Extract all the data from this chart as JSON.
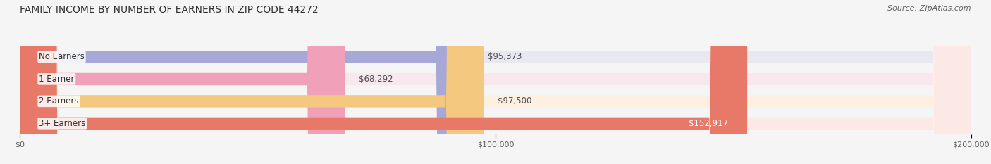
{
  "title": "FAMILY INCOME BY NUMBER OF EARNERS IN ZIP CODE 44272",
  "source": "Source: ZipAtlas.com",
  "categories": [
    "No Earners",
    "1 Earner",
    "2 Earners",
    "3+ Earners"
  ],
  "values": [
    95373,
    68292,
    97500,
    152917
  ],
  "bar_colors": [
    "#a8a8d8",
    "#f0a0b8",
    "#f5c880",
    "#e87868"
  ],
  "bar_bg_colors": [
    "#e8e8f0",
    "#f8e8ee",
    "#fdf0e0",
    "#fce8e4"
  ],
  "label_colors": [
    "#404040",
    "#404040",
    "#404040",
    "#ffffff"
  ],
  "xlim": [
    0,
    200000
  ],
  "xticks": [
    0,
    100000,
    200000
  ],
  "xtick_labels": [
    "$0",
    "$100,000",
    "$200,000"
  ],
  "bar_height": 0.55,
  "figsize": [
    14.06,
    2.33
  ],
  "dpi": 100,
  "title_fontsize": 10,
  "label_fontsize": 8.5,
  "value_fontsize": 8.5,
  "source_fontsize": 8,
  "tick_fontsize": 8
}
